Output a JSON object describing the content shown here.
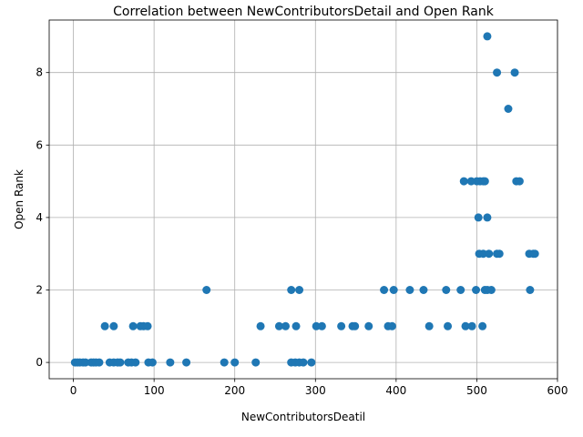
{
  "chart_data": {
    "type": "scatter",
    "title": "Correlation between NewContributorsDetail and Open Rank",
    "xlabel": "NewContributorsDeatil",
    "ylabel": "Open Rank",
    "xlim": [
      -30,
      600
    ],
    "ylim": [
      -0.45,
      9.45
    ],
    "xticks": [
      0,
      100,
      200,
      300,
      400,
      500,
      600
    ],
    "yticks": [
      0,
      2,
      4,
      6,
      8
    ],
    "grid": true,
    "marker_color": "#1f77b4",
    "points": [
      {
        "x": 2,
        "y": 0
      },
      {
        "x": 5,
        "y": 0
      },
      {
        "x": 8,
        "y": 0
      },
      {
        "x": 12,
        "y": 0
      },
      {
        "x": 15,
        "y": 0
      },
      {
        "x": 22,
        "y": 0
      },
      {
        "x": 25,
        "y": 0
      },
      {
        "x": 28,
        "y": 0
      },
      {
        "x": 32,
        "y": 0
      },
      {
        "x": 45,
        "y": 0
      },
      {
        "x": 50,
        "y": 0
      },
      {
        "x": 55,
        "y": 0
      },
      {
        "x": 58,
        "y": 0
      },
      {
        "x": 68,
        "y": 0
      },
      {
        "x": 72,
        "y": 0
      },
      {
        "x": 77,
        "y": 0
      },
      {
        "x": 93,
        "y": 0
      },
      {
        "x": 98,
        "y": 0
      },
      {
        "x": 120,
        "y": 0
      },
      {
        "x": 140,
        "y": 0
      },
      {
        "x": 187,
        "y": 0
      },
      {
        "x": 200,
        "y": 0
      },
      {
        "x": 226,
        "y": 0
      },
      {
        "x": 270,
        "y": 0
      },
      {
        "x": 275,
        "y": 0
      },
      {
        "x": 280,
        "y": 0
      },
      {
        "x": 285,
        "y": 0
      },
      {
        "x": 295,
        "y": 0
      },
      {
        "x": 39,
        "y": 1
      },
      {
        "x": 50,
        "y": 1
      },
      {
        "x": 74,
        "y": 1
      },
      {
        "x": 83,
        "y": 1
      },
      {
        "x": 87,
        "y": 1
      },
      {
        "x": 92,
        "y": 1
      },
      {
        "x": 232,
        "y": 1
      },
      {
        "x": 255,
        "y": 1
      },
      {
        "x": 263,
        "y": 1
      },
      {
        "x": 276,
        "y": 1
      },
      {
        "x": 301,
        "y": 1
      },
      {
        "x": 308,
        "y": 1
      },
      {
        "x": 332,
        "y": 1
      },
      {
        "x": 346,
        "y": 1
      },
      {
        "x": 349,
        "y": 1
      },
      {
        "x": 366,
        "y": 1
      },
      {
        "x": 390,
        "y": 1
      },
      {
        "x": 395,
        "y": 1
      },
      {
        "x": 441,
        "y": 1
      },
      {
        "x": 464,
        "y": 1
      },
      {
        "x": 486,
        "y": 1
      },
      {
        "x": 494,
        "y": 1
      },
      {
        "x": 507,
        "y": 1
      },
      {
        "x": 165,
        "y": 2
      },
      {
        "x": 270,
        "y": 2
      },
      {
        "x": 280,
        "y": 2
      },
      {
        "x": 385,
        "y": 2
      },
      {
        "x": 397,
        "y": 2
      },
      {
        "x": 417,
        "y": 2
      },
      {
        "x": 434,
        "y": 2
      },
      {
        "x": 462,
        "y": 2
      },
      {
        "x": 480,
        "y": 2
      },
      {
        "x": 499,
        "y": 2
      },
      {
        "x": 510,
        "y": 2
      },
      {
        "x": 513,
        "y": 2
      },
      {
        "x": 518,
        "y": 2
      },
      {
        "x": 566,
        "y": 2
      },
      {
        "x": 503,
        "y": 3
      },
      {
        "x": 508,
        "y": 3
      },
      {
        "x": 515,
        "y": 3
      },
      {
        "x": 525,
        "y": 3
      },
      {
        "x": 528,
        "y": 3
      },
      {
        "x": 565,
        "y": 3
      },
      {
        "x": 570,
        "y": 3
      },
      {
        "x": 572,
        "y": 3
      },
      {
        "x": 502,
        "y": 4
      },
      {
        "x": 513,
        "y": 4
      },
      {
        "x": 484,
        "y": 5
      },
      {
        "x": 493,
        "y": 5
      },
      {
        "x": 500,
        "y": 5
      },
      {
        "x": 504,
        "y": 5
      },
      {
        "x": 508,
        "y": 5
      },
      {
        "x": 510,
        "y": 5
      },
      {
        "x": 549,
        "y": 5
      },
      {
        "x": 553,
        "y": 5
      },
      {
        "x": 539,
        "y": 7
      },
      {
        "x": 525,
        "y": 8
      },
      {
        "x": 547,
        "y": 8
      },
      {
        "x": 513,
        "y": 9
      }
    ]
  }
}
